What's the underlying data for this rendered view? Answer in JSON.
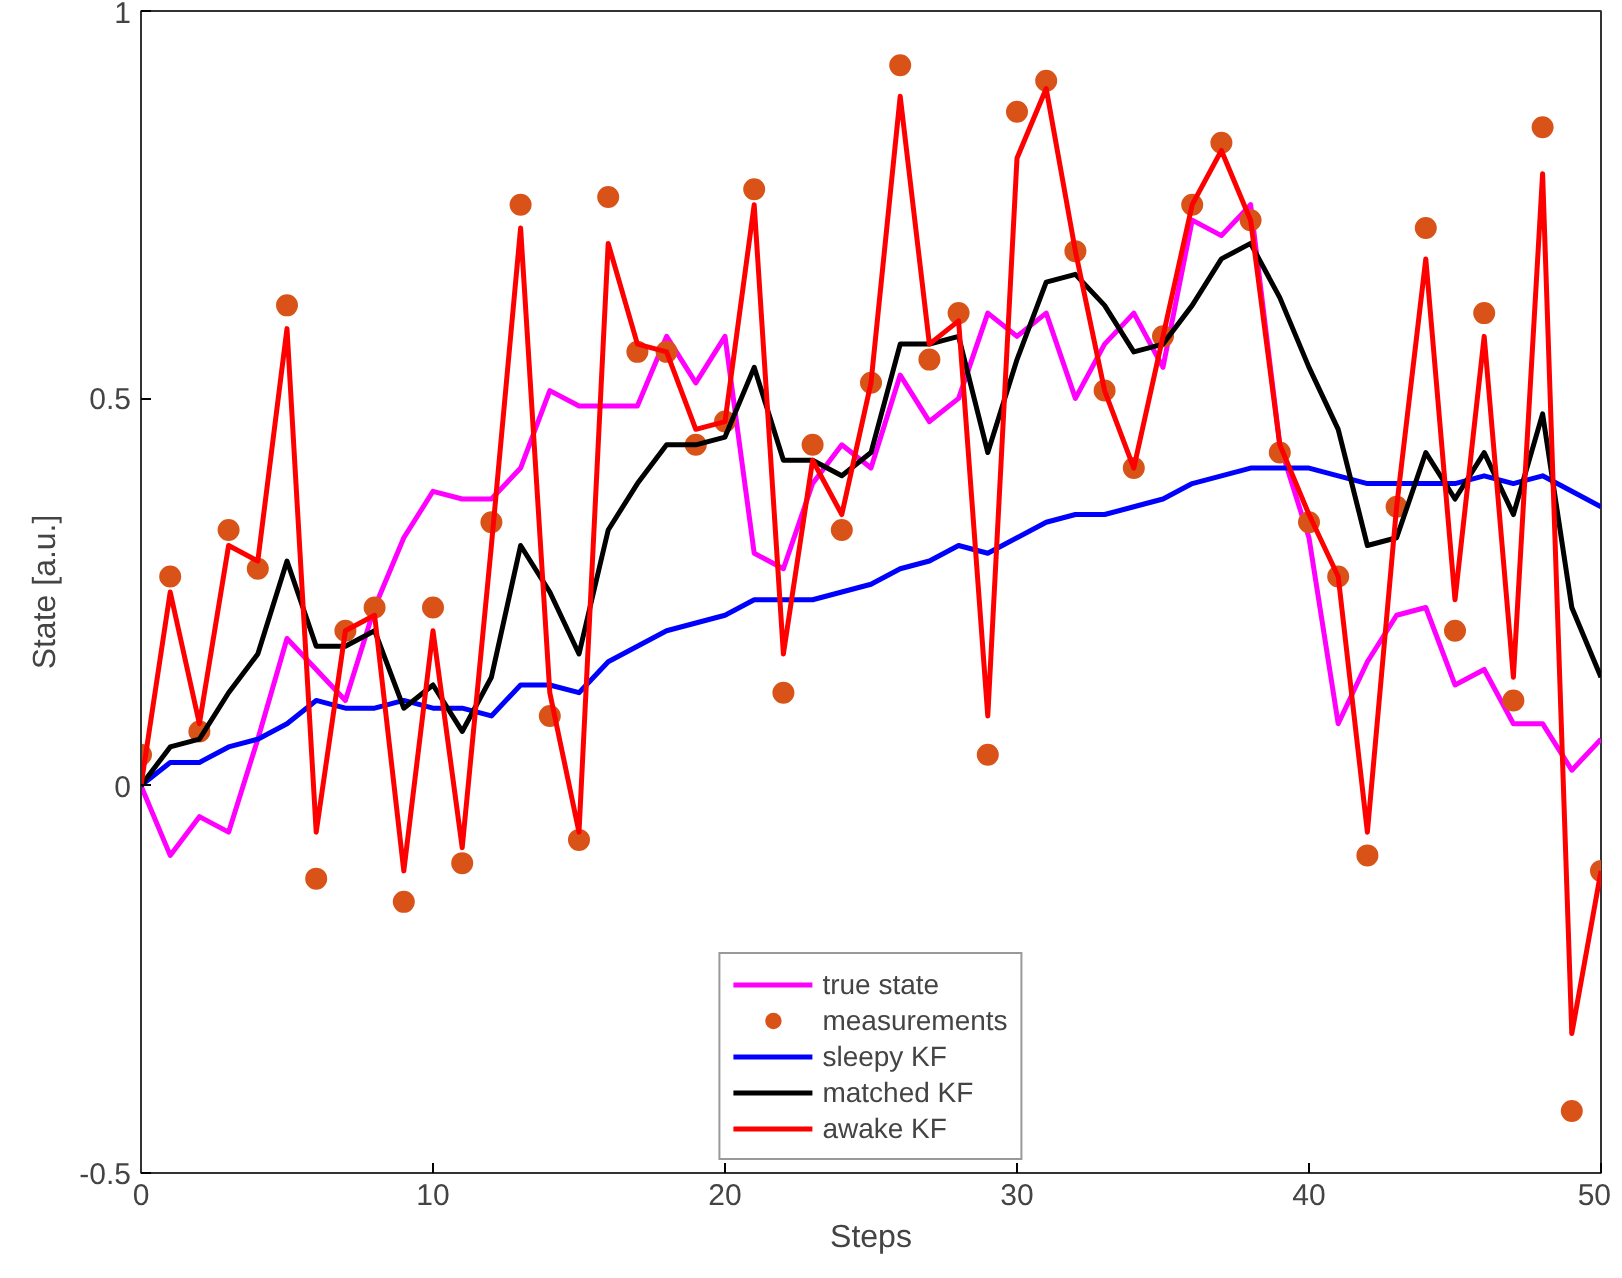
{
  "chart_data": {
    "type": "line",
    "xlabel": "Steps",
    "ylabel": "State [a.u.]",
    "xlim": [
      0,
      50
    ],
    "xticks": [
      0,
      10,
      20,
      30,
      40,
      50
    ],
    "ylim": [
      -0.5,
      1
    ],
    "yticks": [
      -0.5,
      0,
      0.5,
      1
    ],
    "grid": false,
    "legend": "bottom",
    "line_style": "solid",
    "x": [
      0,
      1,
      2,
      3,
      4,
      5,
      6,
      7,
      8,
      9,
      10,
      11,
      12,
      13,
      14,
      15,
      16,
      17,
      18,
      19,
      20,
      21,
      22,
      23,
      24,
      25,
      26,
      27,
      28,
      29,
      30,
      31,
      32,
      33,
      34,
      35,
      36,
      37,
      38,
      39,
      40,
      41,
      42,
      43,
      44,
      45,
      46,
      47,
      48,
      49,
      50
    ],
    "series": [
      {
        "name": "true state",
        "color": "#ff00ff",
        "values": [
          0,
          -0.09,
          -0.04,
          -0.06,
          0.06,
          0.19,
          0.15,
          0.11,
          0.23,
          0.32,
          0.38,
          0.37,
          0.37,
          0.41,
          0.51,
          0.49,
          0.49,
          0.49,
          0.58,
          0.52,
          0.58,
          0.3,
          0.28,
          0.39,
          0.44,
          0.41,
          0.53,
          0.47,
          0.5,
          0.61,
          0.58,
          0.61,
          0.5,
          0.57,
          0.61,
          0.54,
          0.73,
          0.71,
          0.75,
          0.44,
          0.32,
          0.08,
          0.16,
          0.22,
          0.23,
          0.13,
          0.15,
          0.08,
          0.08,
          0.02,
          0.06
        ]
      },
      {
        "name": "measurements",
        "type": "scatter",
        "marker": "circle",
        "color": "#d95319",
        "values": [
          0.04,
          0.27,
          0.07,
          0.33,
          0.28,
          0.62,
          -0.12,
          0.2,
          0.23,
          -0.15,
          0.23,
          -0.1,
          0.34,
          0.75,
          0.09,
          -0.07,
          0.76,
          0.56,
          0.56,
          0.44,
          0.47,
          0.77,
          0.12,
          0.44,
          0.33,
          0.52,
          0.93,
          0.55,
          0.61,
          0.04,
          0.87,
          0.91,
          0.69,
          0.51,
          0.41,
          0.58,
          0.75,
          0.83,
          0.73,
          0.43,
          0.34,
          0.27,
          -0.09,
          0.36,
          0.72,
          0.2,
          0.61,
          0.11,
          0.85,
          -0.42,
          -0.11
        ]
      },
      {
        "name": "sleepy KF",
        "color": "#0000ff",
        "values": [
          0,
          0.03,
          0.03,
          0.05,
          0.06,
          0.08,
          0.11,
          0.1,
          0.1,
          0.11,
          0.1,
          0.1,
          0.09,
          0.13,
          0.13,
          0.12,
          0.16,
          0.18,
          0.2,
          0.21,
          0.22,
          0.24,
          0.24,
          0.24,
          0.25,
          0.26,
          0.28,
          0.29,
          0.31,
          0.3,
          0.32,
          0.34,
          0.35,
          0.35,
          0.36,
          0.37,
          0.39,
          0.4,
          0.41,
          0.41,
          0.41,
          0.4,
          0.39,
          0.39,
          0.39,
          0.39,
          0.4,
          0.39,
          0.4,
          0.38,
          0.36
        ]
      },
      {
        "name": "matched KF",
        "color": "#000000",
        "values": [
          0,
          0.05,
          0.06,
          0.12,
          0.17,
          0.29,
          0.18,
          0.18,
          0.2,
          0.1,
          0.13,
          0.07,
          0.14,
          0.31,
          0.25,
          0.17,
          0.33,
          0.39,
          0.44,
          0.44,
          0.45,
          0.54,
          0.42,
          0.42,
          0.4,
          0.43,
          0.57,
          0.57,
          0.58,
          0.43,
          0.55,
          0.65,
          0.66,
          0.62,
          0.56,
          0.57,
          0.62,
          0.68,
          0.7,
          0.63,
          0.54,
          0.46,
          0.31,
          0.32,
          0.43,
          0.37,
          0.43,
          0.35,
          0.48,
          0.23,
          0.14
        ]
      },
      {
        "name": "awake KF",
        "color": "#ff0000",
        "values": [
          0,
          0.25,
          0.08,
          0.31,
          0.29,
          0.59,
          -0.06,
          0.2,
          0.22,
          -0.11,
          0.2,
          -0.08,
          0.31,
          0.72,
          0.12,
          -0.06,
          0.7,
          0.57,
          0.56,
          0.46,
          0.47,
          0.75,
          0.17,
          0.42,
          0.35,
          0.52,
          0.89,
          0.57,
          0.6,
          0.09,
          0.81,
          0.9,
          0.69,
          0.51,
          0.41,
          0.58,
          0.75,
          0.82,
          0.73,
          0.44,
          0.35,
          0.27,
          -0.06,
          0.36,
          0.68,
          0.24,
          0.58,
          0.14,
          0.79,
          -0.32,
          -0.11
        ]
      }
    ]
  }
}
